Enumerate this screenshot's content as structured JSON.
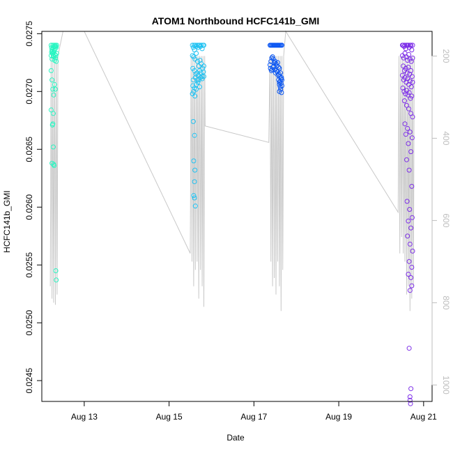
{
  "chart_data": {
    "type": "scatter",
    "title": "ATOM1 Northbound HCFC141b_GMI",
    "xlabel": "Date",
    "ylabel": "HCFC141b_GMI",
    "x_unit": "days (August)",
    "xlim": [
      12,
      21.2
    ],
    "ylim": [
      0.02432,
      0.02752
    ],
    "x_ticks": [
      {
        "value": 13,
        "label": "Aug 13"
      },
      {
        "value": 15,
        "label": "Aug 15"
      },
      {
        "value": 17,
        "label": "Aug 17"
      },
      {
        "value": 19,
        "label": "Aug 19"
      },
      {
        "value": 21,
        "label": "Aug 21"
      }
    ],
    "y_ticks": [
      {
        "value": 0.0245,
        "label": "0.0245"
      },
      {
        "value": 0.025,
        "label": "0.0250"
      },
      {
        "value": 0.0255,
        "label": "0.0255"
      },
      {
        "value": 0.026,
        "label": "0.0260"
      },
      {
        "value": 0.0265,
        "label": "0.0265"
      },
      {
        "value": 0.027,
        "label": "0.0270"
      },
      {
        "value": 0.0275,
        "label": "0.0275"
      }
    ],
    "secondary_axis": {
      "side": "right",
      "color": "#bdbdbd",
      "range": [
        140,
        1040
      ],
      "ticks": [
        {
          "value": 200,
          "label": "200"
        },
        {
          "value": 400,
          "label": "400"
        },
        {
          "value": 600,
          "label": "600"
        },
        {
          "value": 800,
          "label": "800"
        },
        {
          "value": 1000,
          "label": "1000"
        }
      ]
    },
    "series": [
      {
        "color": "#27f5c1",
        "x": [
          12.22,
          12.23,
          12.24,
          12.25,
          12.26,
          12.27,
          12.28,
          12.29,
          12.3,
          12.31,
          12.32,
          12.33,
          12.34,
          12.35,
          12.22,
          12.24,
          12.26,
          12.28,
          12.3,
          12.32,
          12.34,
          12.23,
          12.25,
          12.27,
          12.29,
          12.31,
          12.33,
          12.35,
          12.22,
          12.24,
          12.26,
          12.28,
          12.3,
          12.32,
          12.22,
          12.27,
          12.26,
          12.25,
          12.27,
          12.29,
          12.24,
          12.28,
          12.33,
          12.34
        ],
        "y": [
          0.0274,
          0.02738,
          0.02736,
          0.02735,
          0.0274,
          0.02738,
          0.02734,
          0.0274,
          0.02739,
          0.02737,
          0.0274,
          0.02739,
          0.02738,
          0.0274,
          0.02731,
          0.02728,
          0.02733,
          0.0273,
          0.02727,
          0.02729,
          0.02726,
          0.02734,
          0.02733,
          0.02731,
          0.02735,
          0.02732,
          0.02731,
          0.02733,
          0.02718,
          0.0271,
          0.02702,
          0.02697,
          0.02706,
          0.02702,
          0.02684,
          0.02681,
          0.02672,
          0.02671,
          0.02652,
          0.02636,
          0.02638,
          0.02637,
          0.02545,
          0.02537
        ]
      },
      {
        "color": "#20c2f2",
        "x": [
          15.55,
          15.57,
          15.59,
          15.6,
          15.62,
          15.64,
          15.66,
          15.68,
          15.7,
          15.72,
          15.74,
          15.76,
          15.78,
          15.8,
          15.82,
          15.55,
          15.58,
          15.61,
          15.64,
          15.67,
          15.7,
          15.73,
          15.76,
          15.79,
          15.82,
          15.56,
          15.6,
          15.63,
          15.66,
          15.69,
          15.72,
          15.75,
          15.78,
          15.81,
          15.57,
          15.62,
          15.66,
          15.7,
          15.74,
          15.78,
          15.82,
          15.56,
          15.6,
          15.64,
          15.68,
          15.72,
          15.55,
          15.58,
          15.61,
          15.64,
          15.57,
          15.6,
          15.58,
          15.61,
          15.6,
          15.58,
          15.62,
          15.6
        ],
        "y": [
          0.0274,
          0.02738,
          0.0274,
          0.02736,
          0.0274,
          0.02739,
          0.0274,
          0.02738,
          0.0274,
          0.0274,
          0.02739,
          0.0274,
          0.02737,
          0.0274,
          0.0274,
          0.02731,
          0.0273,
          0.02728,
          0.02733,
          0.02726,
          0.02722,
          0.02727,
          0.02724,
          0.0272,
          0.02722,
          0.0272,
          0.02718,
          0.02715,
          0.02716,
          0.02714,
          0.02718,
          0.02716,
          0.02713,
          0.02717,
          0.0271,
          0.02712,
          0.0271,
          0.0271,
          0.02712,
          0.02711,
          0.02713,
          0.02705,
          0.02703,
          0.02706,
          0.02708,
          0.02704,
          0.02698,
          0.027,
          0.02696,
          0.02702,
          0.02674,
          0.02662,
          0.0264,
          0.02632,
          0.02622,
          0.0261,
          0.02601,
          0.02608
        ]
      },
      {
        "color": "#0b56f2",
        "x": [
          17.38,
          17.4,
          17.42,
          17.44,
          17.46,
          17.48,
          17.5,
          17.52,
          17.54,
          17.56,
          17.58,
          17.6,
          17.62,
          17.64,
          17.66,
          17.38,
          17.4,
          17.42,
          17.44,
          17.46,
          17.48,
          17.5,
          17.52,
          17.54,
          17.56,
          17.58,
          17.6,
          17.39,
          17.41,
          17.43,
          17.45,
          17.47,
          17.49,
          17.51,
          17.53,
          17.55,
          17.57,
          17.59,
          17.61,
          17.63,
          17.65,
          17.58,
          17.6,
          17.62,
          17.64,
          17.66,
          17.6,
          17.62,
          17.64,
          17.66,
          17.6,
          17.63,
          17.65
        ],
        "y": [
          0.0274,
          0.0274,
          0.0274,
          0.0274,
          0.0274,
          0.0274,
          0.0274,
          0.0274,
          0.0274,
          0.0274,
          0.0274,
          0.0274,
          0.0274,
          0.0274,
          0.0274,
          0.02723,
          0.02726,
          0.02729,
          0.0273,
          0.02728,
          0.02725,
          0.02726,
          0.02724,
          0.02722,
          0.02725,
          0.02721,
          0.0272,
          0.0272,
          0.02718,
          0.02719,
          0.02721,
          0.02722,
          0.02719,
          0.02716,
          0.02718,
          0.02717,
          0.02714,
          0.02715,
          0.02713,
          0.02716,
          0.02712,
          0.0271,
          0.02708,
          0.02709,
          0.02711,
          0.0271,
          0.02706,
          0.02704,
          0.02707,
          0.02705,
          0.027,
          0.02702,
          0.02699
        ]
      },
      {
        "color": "#7d2ee8",
        "x": [
          20.5,
          20.52,
          20.54,
          20.56,
          20.58,
          20.6,
          20.62,
          20.64,
          20.66,
          20.68,
          20.7,
          20.72,
          20.74,
          20.5,
          20.53,
          20.56,
          20.59,
          20.62,
          20.65,
          20.68,
          20.71,
          20.74,
          20.52,
          20.55,
          20.58,
          20.61,
          20.64,
          20.67,
          20.7,
          20.73,
          20.5,
          20.53,
          20.56,
          20.59,
          20.62,
          20.65,
          20.68,
          20.71,
          20.74,
          20.51,
          20.54,
          20.57,
          20.6,
          20.63,
          20.66,
          20.69,
          20.72,
          20.55,
          20.6,
          20.65,
          20.7,
          20.74,
          20.56,
          20.62,
          20.68,
          20.73,
          20.58,
          20.64,
          20.7,
          20.6,
          20.66,
          20.72,
          20.61,
          20.67,
          20.73,
          20.64,
          20.7,
          20.62,
          20.68,
          20.74,
          20.66,
          20.72,
          20.64,
          20.7,
          20.68,
          20.72,
          20.66,
          20.7,
          20.68,
          20.69,
          20.68
        ],
        "y": [
          0.0274,
          0.0274,
          0.02739,
          0.0274,
          0.02737,
          0.0274,
          0.0274,
          0.0274,
          0.02738,
          0.0274,
          0.0274,
          0.02736,
          0.0274,
          0.02731,
          0.02729,
          0.02733,
          0.0273,
          0.02727,
          0.02732,
          0.02728,
          0.02726,
          0.02729,
          0.02722,
          0.02718,
          0.0272,
          0.02716,
          0.02721,
          0.02715,
          0.02718,
          0.02713,
          0.02714,
          0.0271,
          0.02712,
          0.02708,
          0.02711,
          0.02706,
          0.02709,
          0.02704,
          0.02708,
          0.02703,
          0.027,
          0.02698,
          0.02701,
          0.02697,
          0.02699,
          0.02694,
          0.02696,
          0.02692,
          0.02688,
          0.02685,
          0.02681,
          0.02678,
          0.02672,
          0.02668,
          0.02665,
          0.0266,
          0.02663,
          0.02655,
          0.02648,
          0.02641,
          0.02632,
          0.02618,
          0.02605,
          0.02598,
          0.02591,
          0.02588,
          0.02582,
          0.02575,
          0.02568,
          0.02562,
          0.02553,
          0.02548,
          0.02542,
          0.02539,
          0.02528,
          0.02532,
          0.02478,
          0.02443,
          0.02436,
          0.0243,
          0.02433
        ]
      }
    ],
    "secondary_line": {
      "color": "#c8c8c8",
      "trajectory": [
        [
          12.22,
          200
        ],
        [
          12.2,
          760
        ],
        [
          12.22,
          200
        ],
        [
          12.24,
          790
        ],
        [
          12.26,
          200
        ],
        [
          12.28,
          800
        ],
        [
          12.3,
          200
        ],
        [
          12.32,
          805
        ],
        [
          12.34,
          200
        ],
        [
          12.36,
          780
        ],
        [
          12.38,
          200
        ],
        [
          12.5,
          140
        ],
        [
          13.0,
          140
        ],
        [
          15.5,
          680
        ],
        [
          15.52,
          200
        ],
        [
          15.54,
          700
        ],
        [
          15.56,
          200
        ],
        [
          15.58,
          760
        ],
        [
          15.6,
          200
        ],
        [
          15.62,
          720
        ],
        [
          15.64,
          200
        ],
        [
          15.66,
          700
        ],
        [
          15.68,
          200
        ],
        [
          15.7,
          790
        ],
        [
          15.72,
          200
        ],
        [
          15.74,
          720
        ],
        [
          15.76,
          200
        ],
        [
          15.78,
          760
        ],
        [
          15.8,
          200
        ],
        [
          15.82,
          810
        ],
        [
          15.84,
          200
        ],
        [
          15.85,
          370
        ],
        [
          17.35,
          410
        ],
        [
          17.38,
          200
        ],
        [
          17.4,
          700
        ],
        [
          17.42,
          200
        ],
        [
          17.44,
          760
        ],
        [
          17.46,
          200
        ],
        [
          17.48,
          740
        ],
        [
          17.5,
          200
        ],
        [
          17.52,
          780
        ],
        [
          17.54,
          200
        ],
        [
          17.56,
          700
        ],
        [
          17.58,
          200
        ],
        [
          17.6,
          760
        ],
        [
          17.62,
          200
        ],
        [
          17.64,
          820
        ],
        [
          17.66,
          200
        ],
        [
          17.68,
          720
        ],
        [
          17.7,
          200
        ],
        [
          17.75,
          140
        ],
        [
          20.4,
          580
        ],
        [
          20.42,
          200
        ],
        [
          20.44,
          680
        ],
        [
          20.46,
          200
        ],
        [
          20.48,
          640
        ],
        [
          20.5,
          200
        ],
        [
          20.52,
          680
        ],
        [
          20.54,
          200
        ],
        [
          20.56,
          700
        ],
        [
          20.58,
          200
        ],
        [
          20.6,
          780
        ],
        [
          20.62,
          200
        ],
        [
          20.64,
          760
        ],
        [
          20.66,
          200
        ],
        [
          20.68,
          820
        ],
        [
          20.7,
          200
        ],
        [
          20.72,
          790
        ],
        [
          20.74,
          200
        ],
        [
          20.76,
          760
        ],
        [
          20.78,
          200
        ]
      ]
    }
  }
}
